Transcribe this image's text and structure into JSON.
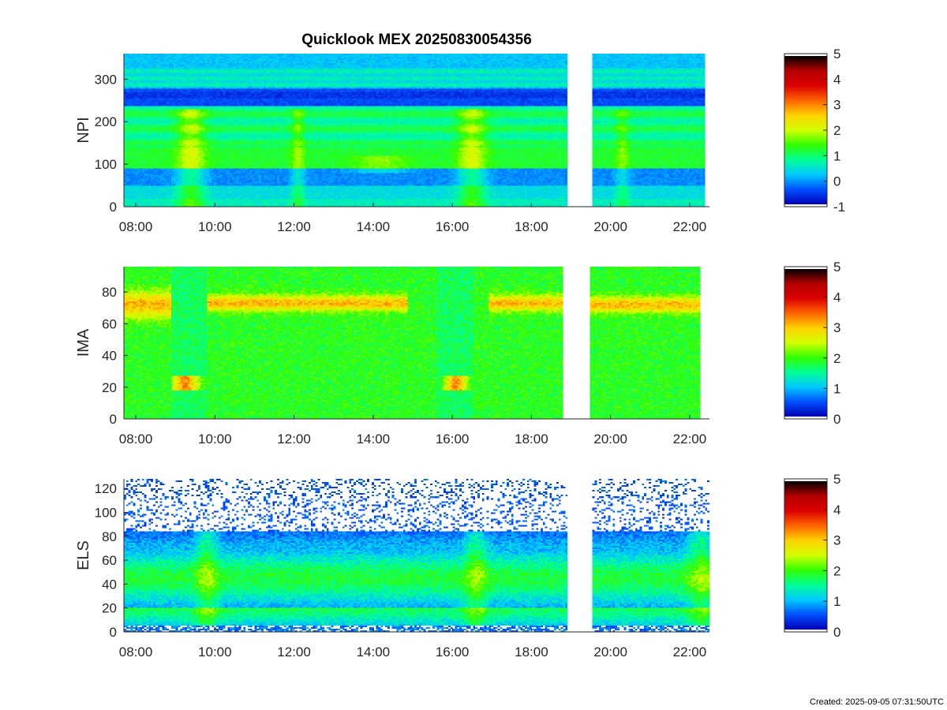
{
  "figure": {
    "title": "Quicklook MEX 20250830054356",
    "footer": "Created: 2025-09-05 07:31:50UTC"
  },
  "colormap": {
    "name": "jet-like",
    "stops": [
      "#0000b4",
      "#0050ff",
      "#00c8ff",
      "#00ff96",
      "#32ff00",
      "#d2ff00",
      "#ffd200",
      "#ff6400",
      "#dc0000",
      "#b40000",
      "#000000"
    ]
  },
  "chart_data": [
    {
      "type": "heatmap",
      "ylabel": "NPI",
      "x_tick_labels": [
        "08:00",
        "10:00",
        "12:00",
        "14:00",
        "16:00",
        "18:00",
        "20:00",
        "22:00"
      ],
      "x_tick_hours": [
        8,
        10,
        12,
        14,
        16,
        18,
        20,
        22
      ],
      "xlim_hours": [
        7.7,
        22.5
      ],
      "data_gaps_hours": [
        [
          18.92,
          19.52
        ]
      ],
      "data_end_hours": 22.4,
      "ylim": [
        0,
        360
      ],
      "y_tick_values": [
        0,
        100,
        200,
        300
      ],
      "y_tick_labels": [
        "0",
        "100",
        "200",
        "300"
      ],
      "colorbar": {
        "limits": [
          -1,
          5
        ],
        "tick_labels": [
          "-1",
          "0",
          "1",
          "2",
          "3",
          "4",
          "5"
        ]
      }
    },
    {
      "type": "heatmap",
      "ylabel": "IMA",
      "x_tick_labels": [
        "08:00",
        "10:00",
        "12:00",
        "14:00",
        "16:00",
        "18:00",
        "20:00",
        "22:00"
      ],
      "x_tick_hours": [
        8,
        10,
        12,
        14,
        16,
        18,
        20,
        22
      ],
      "xlim_hours": [
        7.7,
        22.5
      ],
      "data_gaps_hours": [
        [
          18.8,
          19.5
        ]
      ],
      "data_end_hours": 22.3,
      "ylim": [
        0,
        96
      ],
      "y_tick_values": [
        0,
        20,
        40,
        60,
        80
      ],
      "y_tick_labels": [
        "0",
        "20",
        "40",
        "60",
        "80"
      ],
      "colorbar": {
        "limits": [
          0,
          5
        ],
        "tick_labels": [
          "0",
          "1",
          "2",
          "3",
          "4",
          "5"
        ]
      }
    },
    {
      "type": "heatmap",
      "ylabel": "ELS",
      "x_tick_labels": [
        "08:00",
        "10:00",
        "12:00",
        "14:00",
        "16:00",
        "18:00",
        "20:00",
        "22:00"
      ],
      "x_tick_hours": [
        8,
        10,
        12,
        14,
        16,
        18,
        20,
        22
      ],
      "xlim_hours": [
        7.7,
        22.5
      ],
      "data_gaps_hours": [
        [
          18.92,
          19.52
        ]
      ],
      "data_end_hours": 22.5,
      "ylim": [
        0,
        128
      ],
      "y_tick_values": [
        0,
        20,
        40,
        60,
        80,
        100,
        120
      ],
      "y_tick_labels": [
        "0",
        "20",
        "40",
        "60",
        "80",
        "100",
        "120"
      ],
      "colorbar": {
        "limits": [
          0,
          5
        ],
        "tick_labels": [
          "0",
          "1",
          "2",
          "3",
          "4",
          "5"
        ]
      }
    }
  ]
}
